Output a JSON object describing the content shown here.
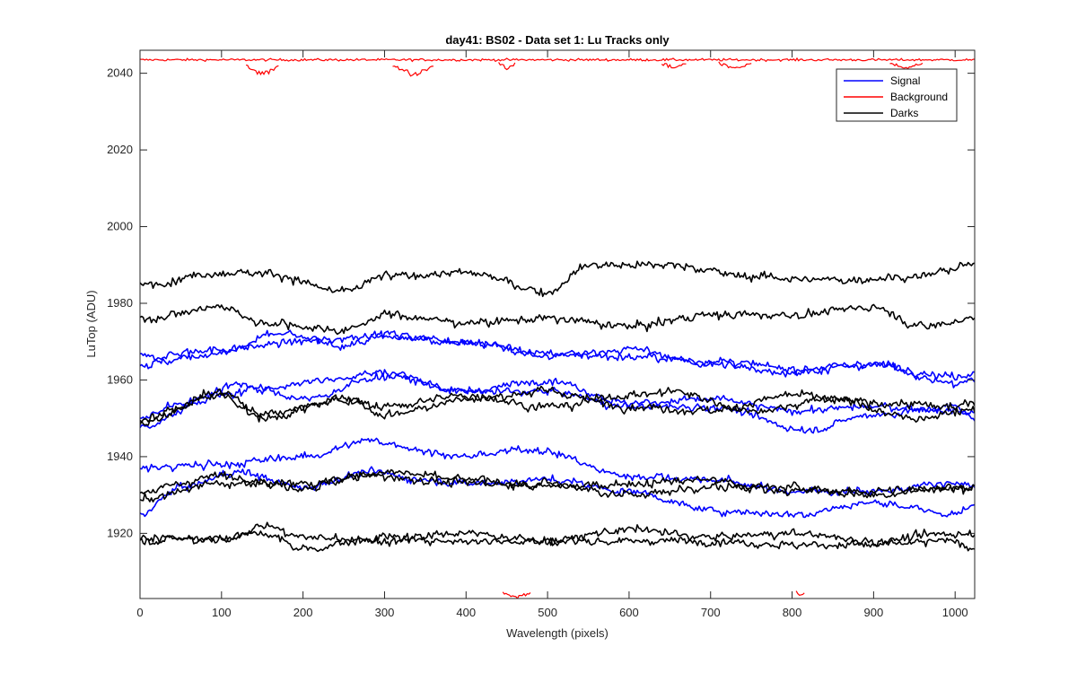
{
  "chart_data": {
    "type": "line",
    "title": "day41: BS02 - Data set 1: Lu Tracks only",
    "xlabel": "Wavelength (pixels)",
    "ylabel": "LuTop (ADU)",
    "xlim": [
      0,
      1024
    ],
    "ylim": [
      1903,
      2046
    ],
    "x_ticks": [
      0,
      100,
      200,
      300,
      400,
      500,
      600,
      700,
      800,
      900,
      1000
    ],
    "y_ticks": [
      1920,
      1940,
      1960,
      1980,
      2000,
      2020,
      2040
    ],
    "grid": false,
    "legend_position": "top-right",
    "legend": [
      {
        "name": "Signal",
        "color": "#0000ff"
      },
      {
        "name": "Background",
        "color": "#ff0000"
      },
      {
        "name": "Darks",
        "color": "#000000"
      }
    ],
    "x_step": 2,
    "series": [
      {
        "group": "Signal",
        "color": "#0000ff",
        "noise": 1.3,
        "knots_x": [
          0,
          100,
          200,
          300,
          400,
          500,
          600,
          700,
          800,
          900,
          1000,
          1024
        ],
        "knots_y": [
          1966,
          1968,
          1970,
          1972,
          1970,
          1967,
          1966,
          1965,
          1963,
          1964,
          1961,
          1962
        ]
      },
      {
        "group": "Signal",
        "color": "#0000ff",
        "noise": 1.3,
        "knots_x": [
          0,
          100,
          170,
          250,
          300,
          400,
          500,
          600,
          700,
          800,
          900,
          1000,
          1024
        ],
        "knots_y": [
          1964,
          1967,
          1972,
          1969,
          1971,
          1970,
          1966,
          1968,
          1964,
          1962,
          1964,
          1959,
          1960
        ]
      },
      {
        "group": "Signal",
        "color": "#0000ff",
        "noise": 1.3,
        "knots_x": [
          0,
          50,
          120,
          200,
          300,
          400,
          500,
          600,
          700,
          820,
          900,
          1000,
          1024
        ],
        "knots_y": [
          1950,
          1954,
          1959,
          1955,
          1961,
          1957,
          1957,
          1953,
          1953,
          1947,
          1951,
          1953,
          1951
        ]
      },
      {
        "group": "Signal",
        "color": "#0000ff",
        "noise": 1.3,
        "knots_x": [
          0,
          100,
          160,
          220,
          300,
          400,
          500,
          600,
          700,
          800,
          900,
          1000,
          1024
        ],
        "knots_y": [
          1948,
          1956,
          1958,
          1960,
          1962,
          1957,
          1960,
          1954,
          1955,
          1952,
          1953,
          1952,
          1950
        ]
      },
      {
        "group": "Signal",
        "color": "#0000ff",
        "noise": 1.3,
        "knots_x": [
          0,
          100,
          200,
          280,
          400,
          480,
          600,
          700,
          800,
          900,
          1000,
          1024
        ],
        "knots_y": [
          1937,
          1938,
          1940,
          1944,
          1940,
          1942,
          1935,
          1934,
          1931,
          1931,
          1933,
          1932
        ]
      },
      {
        "group": "Signal",
        "color": "#0000ff",
        "noise": 1.3,
        "knots_x": [
          0,
          50,
          120,
          200,
          280,
          350,
          400,
          500,
          600,
          700,
          800,
          900,
          1000,
          1024
        ],
        "knots_y": [
          1925,
          1932,
          1936,
          1932,
          1936,
          1934,
          1933,
          1934,
          1931,
          1926,
          1925,
          1928,
          1925,
          1927
        ]
      },
      {
        "group": "Darks",
        "color": "#000000",
        "noise": 1.4,
        "knots_x": [
          0,
          100,
          150,
          250,
          300,
          400,
          500,
          550,
          650,
          750,
          850,
          950,
          1024
        ],
        "knots_y": [
          1985,
          1988,
          1988,
          1983,
          1987,
          1988,
          1983,
          1990,
          1990,
          1987,
          1986,
          1987,
          1990
        ]
      },
      {
        "group": "Darks",
        "color": "#000000",
        "noise": 1.4,
        "knots_x": [
          0,
          100,
          150,
          250,
          300,
          400,
          500,
          600,
          700,
          800,
          900,
          960,
          1024
        ],
        "knots_y": [
          1976,
          1979,
          1975,
          1973,
          1977,
          1975,
          1976,
          1974,
          1977,
          1977,
          1979,
          1974,
          1976
        ]
      },
      {
        "group": "Darks",
        "color": "#000000",
        "noise": 1.4,
        "knots_x": [
          0,
          100,
          150,
          250,
          300,
          400,
          500,
          600,
          700,
          800,
          900,
          1000,
          1024
        ],
        "knots_y": [
          1950,
          1956,
          1950,
          1955,
          1951,
          1955,
          1957,
          1953,
          1952,
          1956,
          1954,
          1953,
          1954
        ]
      },
      {
        "group": "Darks",
        "color": "#000000",
        "noise": 1.4,
        "knots_x": [
          0,
          100,
          150,
          250,
          300,
          400,
          500,
          600,
          650,
          750,
          850,
          950,
          1024
        ],
        "knots_y": [
          1949,
          1957,
          1951,
          1955,
          1953,
          1956,
          1953,
          1956,
          1957,
          1952,
          1955,
          1950,
          1952
        ]
      },
      {
        "group": "Darks",
        "color": "#000000",
        "noise": 1.4,
        "knots_x": [
          0,
          100,
          200,
          280,
          400,
          500,
          600,
          700,
          800,
          900,
          1000,
          1024
        ],
        "knots_y": [
          1929,
          1933,
          1933,
          1935,
          1933,
          1933,
          1930,
          1932,
          1932,
          1930,
          1932,
          1932
        ]
      },
      {
        "group": "Darks",
        "color": "#000000",
        "noise": 1.4,
        "knots_x": [
          0,
          100,
          200,
          300,
          400,
          500,
          600,
          700,
          750,
          800,
          900,
          1000,
          1024
        ],
        "knots_y": [
          1931,
          1935,
          1932,
          1936,
          1934,
          1932,
          1933,
          1934,
          1932,
          1931,
          1931,
          1932,
          1932
        ]
      },
      {
        "group": "Darks",
        "color": "#000000",
        "noise": 1.4,
        "knots_x": [
          0,
          100,
          150,
          200,
          300,
          400,
          500,
          600,
          700,
          800,
          900,
          1000,
          1024
        ],
        "knots_y": [
          1919,
          1918,
          1922,
          1919,
          1918,
          1920,
          1918,
          1921,
          1919,
          1920,
          1918,
          1920,
          1920
        ]
      },
      {
        "group": "Darks",
        "color": "#000000",
        "noise": 1.4,
        "knots_x": [
          0,
          100,
          150,
          200,
          300,
          400,
          500,
          600,
          700,
          800,
          900,
          1000,
          1024
        ],
        "knots_y": [
          1918,
          1919,
          1920,
          1916,
          1919,
          1918,
          1918,
          1918,
          1918,
          1917,
          1917,
          1918,
          1916
        ]
      }
    ],
    "background_segments": [
      {
        "x_range": [
          0,
          1024
        ],
        "base": 2043.5,
        "dip_region": [],
        "color": "#ff0000"
      },
      {
        "x_range": [
          130,
          170
        ],
        "base": 2042,
        "depth": 3,
        "color": "#ff0000"
      },
      {
        "x_range": [
          310,
          360
        ],
        "base": 2042,
        "depth": 3,
        "color": "#ff0000"
      },
      {
        "x_range": [
          440,
          460
        ],
        "base": 2042.5,
        "depth": 1.5,
        "color": "#ff0000"
      },
      {
        "x_range": [
          640,
          670
        ],
        "base": 2042.5,
        "depth": 1.5,
        "color": "#ff0000"
      },
      {
        "x_range": [
          710,
          750
        ],
        "base": 2042.5,
        "depth": 1.5,
        "color": "#ff0000"
      },
      {
        "x_range": [
          920,
          960
        ],
        "base": 2042.5,
        "depth": 1.5,
        "color": "#ff0000"
      },
      {
        "x_range": [
          445,
          480
        ],
        "base": 1904.5,
        "depth": 1.5,
        "color": "#ff0000"
      },
      {
        "x_range": [
          805,
          815
        ],
        "base": 1904.5,
        "depth": 1.0,
        "color": "#ff0000"
      }
    ]
  }
}
